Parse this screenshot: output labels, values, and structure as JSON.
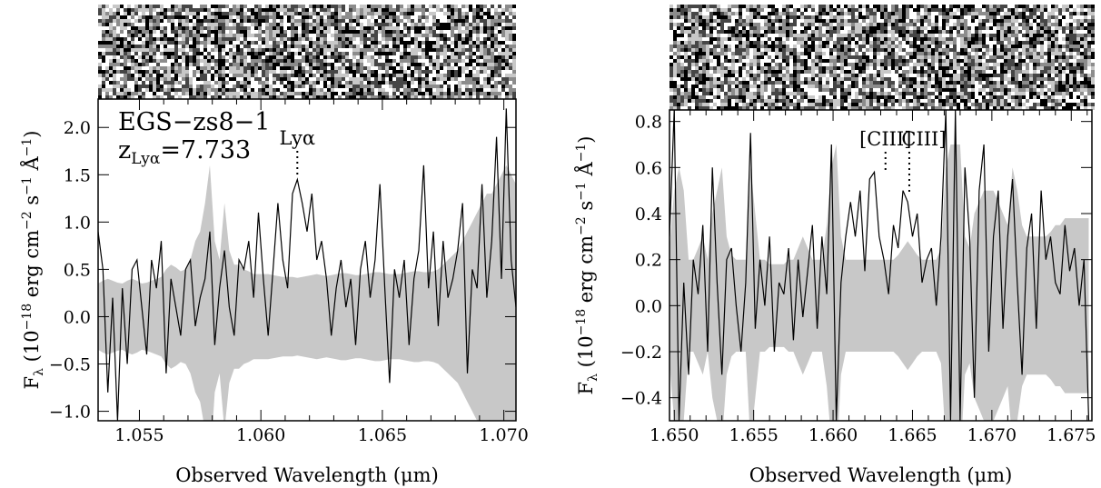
{
  "chart_data": [
    {
      "type": "line",
      "panel": "left",
      "annotations": {
        "object_name": "EGS−zs8−1",
        "redshift_prefix": "z",
        "redshift_subscript": "Lyα",
        "redshift_value": "=7.733",
        "line_label": "Lyα",
        "line_wavelength": 1.0615
      },
      "xlabel": "Observed Wavelength (μm)",
      "ylabel_prefix": "F",
      "ylabel_subscript": "λ",
      "ylabel_unit_pre": " (10",
      "ylabel_exp1": "−18",
      "ylabel_unit_mid": " erg cm",
      "ylabel_exp2": "−2",
      "ylabel_unit_s": " s",
      "ylabel_exp3": "−1",
      "ylabel_unit_A": "Å",
      "ylabel_exp4": "−1",
      "ylabel_unit_post": ")",
      "xlim": [
        1.0533,
        1.0705
      ],
      "ylim": [
        -1.1,
        2.3
      ],
      "xticks": [
        1.055,
        1.06,
        1.065,
        1.07
      ],
      "xtick_labels": [
        "1.055",
        "1.060",
        "1.065",
        "1.070"
      ],
      "yticks": [
        -1.0,
        -0.5,
        0.0,
        0.5,
        1.0,
        1.5,
        2.0
      ],
      "ytick_labels": [
        "−1.0",
        "−0.5",
        "0.0",
        "0.5",
        "1.0",
        "1.5",
        "2.0"
      ],
      "series": [
        {
          "values_x": [
            1.0533,
            1.0535,
            1.0537,
            1.0539,
            1.0541,
            1.0543,
            1.0545,
            1.0547,
            1.0549,
            1.0551,
            1.0553,
            1.0555,
            1.0557,
            1.0559,
            1.0561,
            1.0563,
            1.0565,
            1.0567,
            1.0569,
            1.0571,
            1.0573,
            1.0575,
            1.0577,
            1.0579,
            1.0581,
            1.0583,
            1.0585,
            1.0587,
            1.0589,
            1.0591,
            1.0593,
            1.0595,
            1.0597,
            1.0599,
            1.0601,
            1.0603,
            1.0605,
            1.0607,
            1.0609,
            1.0611,
            1.0613,
            1.0615,
            1.0617,
            1.0619,
            1.0621,
            1.0623,
            1.0625,
            1.0627,
            1.0629,
            1.0631,
            1.0633,
            1.0635,
            1.0637,
            1.0639,
            1.0641,
            1.0643,
            1.0645,
            1.0647,
            1.0649,
            1.0651,
            1.0653,
            1.0655,
            1.0657,
            1.0659,
            1.0661,
            1.0663,
            1.0665,
            1.0667,
            1.0669,
            1.0671,
            1.0673,
            1.0675,
            1.0677,
            1.0679,
            1.0681,
            1.0683,
            1.0685,
            1.0687,
            1.0689,
            1.0691,
            1.0693,
            1.0695,
            1.0697,
            1.0699,
            1.0701,
            1.0703,
            1.0705
          ],
          "values_y": [
            0.9,
            0.5,
            -0.8,
            0.2,
            -1.1,
            0.3,
            -0.5,
            0.5,
            0.6,
            0.1,
            -0.4,
            0.6,
            0.3,
            0.8,
            -0.6,
            0.4,
            0.1,
            -0.2,
            0.5,
            0.6,
            -0.1,
            0.2,
            0.4,
            0.9,
            -0.3,
            0.3,
            0.7,
            0.1,
            -0.2,
            0.6,
            0.5,
            0.8,
            0.2,
            1.1,
            0.4,
            -0.2,
            0.5,
            1.2,
            0.6,
            0.3,
            1.3,
            1.45,
            1.2,
            0.9,
            1.3,
            0.6,
            0.8,
            0.4,
            -0.2,
            0.3,
            0.6,
            0.1,
            0.4,
            -0.3,
            0.5,
            0.8,
            0.2,
            0.6,
            1.4,
            0.3,
            -0.7,
            0.5,
            0.2,
            0.6,
            -0.3,
            0.4,
            0.7,
            1.6,
            0.3,
            0.9,
            -0.1,
            0.8,
            0.2,
            0.4,
            0.7,
            1.2,
            -0.6,
            0.5,
            0.3,
            1.4,
            0.2,
            0.8,
            1.9,
            0.4,
            2.2,
            0.6,
            0.1
          ],
          "err": [
            0.35,
            0.38,
            0.4,
            0.38,
            0.36,
            0.35,
            0.38,
            0.4,
            0.38,
            0.35,
            0.36,
            0.38,
            0.4,
            0.42,
            0.5,
            0.55,
            0.52,
            0.48,
            0.5,
            0.6,
            0.8,
            0.9,
            1.2,
            1.6,
            0.8,
            0.6,
            1.2,
            0.7,
            0.55,
            0.55,
            0.5,
            0.48,
            0.45,
            0.45,
            0.45,
            0.45,
            0.44,
            0.43,
            0.42,
            0.42,
            0.42,
            0.41,
            0.42,
            0.43,
            0.44,
            0.45,
            0.44,
            0.43,
            0.44,
            0.45,
            0.46,
            0.46,
            0.45,
            0.44,
            0.44,
            0.45,
            0.46,
            0.47,
            0.47,
            0.46,
            0.45,
            0.45,
            0.45,
            0.46,
            0.47,
            0.48,
            0.48,
            0.47,
            0.47,
            0.48,
            0.5,
            0.55,
            0.6,
            0.65,
            0.7,
            0.8,
            0.9,
            1.0,
            1.1,
            1.2,
            1.3,
            1.3,
            1.4,
            1.5,
            1.6,
            1.5,
            1.4
          ]
        }
      ]
    },
    {
      "type": "line",
      "panel": "right",
      "annotations": {
        "line_label_1": "[CIII]",
        "line_wavelength_1": 1.6633,
        "line_label_2": "CIII]",
        "line_wavelength_2": 1.6648
      },
      "xlabel": "Observed Wavelength (μm)",
      "ylabel_prefix": "F",
      "ylabel_subscript": "λ",
      "ylabel_unit_pre": " (10",
      "ylabel_exp1": "−18",
      "ylabel_unit_mid": " erg cm",
      "ylabel_exp2": "−2",
      "ylabel_unit_s": " s",
      "ylabel_exp3": "−1",
      "ylabel_unit_A": "Å",
      "ylabel_exp4": "−1",
      "ylabel_unit_post": ")",
      "xlim": [
        1.6497,
        1.6763
      ],
      "ylim": [
        -0.5,
        0.85
      ],
      "xticks": [
        1.65,
        1.655,
        1.66,
        1.665,
        1.67,
        1.675
      ],
      "xtick_labels": [
        "1.650",
        "1.655",
        "1.660",
        "1.665",
        "1.670",
        "1.675"
      ],
      "yticks": [
        -0.4,
        -0.2,
        0.0,
        0.2,
        0.4,
        0.6,
        0.8
      ],
      "ytick_labels": [
        "−0.4",
        "−0.2",
        "0.0",
        "0.2",
        "0.4",
        "0.6",
        "0.8"
      ],
      "series": [
        {
          "values_x": [
            1.6497,
            1.65,
            1.6503,
            1.6506,
            1.6509,
            1.6512,
            1.6515,
            1.6518,
            1.6521,
            1.6524,
            1.6527,
            1.653,
            1.6533,
            1.6536,
            1.6539,
            1.6542,
            1.6545,
            1.6548,
            1.6551,
            1.6554,
            1.6557,
            1.656,
            1.6563,
            1.6566,
            1.6569,
            1.6572,
            1.6575,
            1.6578,
            1.6581,
            1.6584,
            1.6587,
            1.659,
            1.6593,
            1.6596,
            1.6599,
            1.6602,
            1.6605,
            1.6608,
            1.6611,
            1.6614,
            1.6617,
            1.662,
            1.6623,
            1.6626,
            1.6629,
            1.6632,
            1.6635,
            1.6638,
            1.6641,
            1.6644,
            1.6647,
            1.665,
            1.6653,
            1.6656,
            1.6659,
            1.6662,
            1.6665,
            1.6668,
            1.6671,
            1.6674,
            1.6677,
            1.668,
            1.6683,
            1.6686,
            1.6689,
            1.6692,
            1.6695,
            1.6698,
            1.6701,
            1.6704,
            1.6707,
            1.671,
            1.6713,
            1.6716,
            1.6719,
            1.6722,
            1.6725,
            1.6728,
            1.6731,
            1.6734,
            1.6737,
            1.674,
            1.6743,
            1.6746,
            1.6749,
            1.6752,
            1.6755,
            1.6758,
            1.6761
          ],
          "values_y": [
            0.3,
            0.85,
            -0.5,
            0.1,
            -0.3,
            0.2,
            0.05,
            0.35,
            -0.2,
            0.6,
            0.1,
            -0.3,
            0.2,
            0.25,
            0.0,
            -0.2,
            0.1,
            0.75,
            -0.1,
            0.2,
            0.0,
            0.3,
            -0.2,
            0.1,
            0.05,
            0.25,
            -0.15,
            0.2,
            -0.05,
            0.15,
            0.35,
            -0.1,
            0.3,
            0.05,
            0.7,
            -0.5,
            0.1,
            0.3,
            0.45,
            0.3,
            0.5,
            0.15,
            0.55,
            0.58,
            0.3,
            0.2,
            0.05,
            0.35,
            0.25,
            0.5,
            0.45,
            0.3,
            0.4,
            0.1,
            0.2,
            0.25,
            0.0,
            0.3,
            0.85,
            -0.5,
            0.85,
            -0.5,
            0.6,
            0.3,
            -0.4,
            0.5,
            0.7,
            -0.2,
            0.3,
            0.5,
            -0.1,
            0.3,
            0.55,
            0.1,
            -0.3,
            0.25,
            0.4,
            -0.1,
            0.5,
            0.2,
            0.3,
            0.1,
            0.05,
            0.35,
            0.15,
            0.25,
            0.0,
            0.2,
            -0.5
          ],
          "err": [
            0.25,
            0.5,
            0.6,
            0.5,
            0.2,
            0.2,
            0.25,
            0.3,
            0.2,
            0.4,
            0.5,
            0.6,
            0.3,
            0.22,
            0.2,
            0.2,
            0.2,
            0.6,
            0.4,
            0.2,
            0.2,
            0.18,
            0.18,
            0.18,
            0.18,
            0.2,
            0.2,
            0.25,
            0.3,
            0.25,
            0.2,
            0.2,
            0.2,
            0.35,
            0.6,
            0.7,
            0.3,
            0.2,
            0.2,
            0.2,
            0.2,
            0.2,
            0.2,
            0.2,
            0.2,
            0.2,
            0.2,
            0.2,
            0.22,
            0.25,
            0.28,
            0.25,
            0.22,
            0.2,
            0.2,
            0.2,
            0.2,
            0.25,
            0.6,
            0.7,
            0.7,
            0.7,
            0.3,
            0.25,
            0.4,
            0.45,
            0.5,
            0.5,
            0.5,
            0.45,
            0.4,
            0.35,
            0.6,
            0.5,
            0.35,
            0.3,
            0.3,
            0.3,
            0.3,
            0.3,
            0.32,
            0.35,
            0.35,
            0.38,
            0.38,
            0.38,
            0.38,
            0.38,
            0.38
          ]
        }
      ]
    }
  ]
}
